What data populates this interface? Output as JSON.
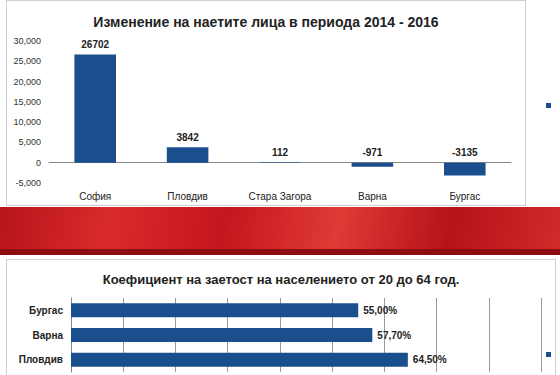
{
  "chart_data": [
    {
      "type": "bar",
      "title": "Изменение на наетите лица в периода 2014 - 2016",
      "categories": [
        "София",
        "Пловдив",
        "Стара Загора",
        "Варна",
        "Бургас"
      ],
      "values": [
        26702,
        3842,
        112,
        -971,
        -3135
      ],
      "color": "#1b4e8c",
      "ylim": [
        -5000,
        30000
      ],
      "yticks": [
        -5000,
        0,
        5000,
        10000,
        15000,
        20000,
        25000,
        30000
      ],
      "grid": false,
      "data_labels": true
    },
    {
      "type": "bar",
      "title": "Коефициент на заетост на населението от 20 до 64 год.",
      "orientation": "horizontal",
      "categories": [
        "Бургас",
        "Варна",
        "Пловдив"
      ],
      "values": [
        55,
        57.7,
        64.5
      ],
      "value_labels": [
        "55,00%",
        "57,70%",
        "64,50%"
      ],
      "color": "#1b4e8c",
      "xlim": [
        0,
        90
      ],
      "xticks": [
        0,
        10,
        20,
        30,
        40,
        50,
        60,
        70,
        80,
        90
      ],
      "grid": true,
      "tick_labels": "y",
      "data_labels": true
    }
  ]
}
